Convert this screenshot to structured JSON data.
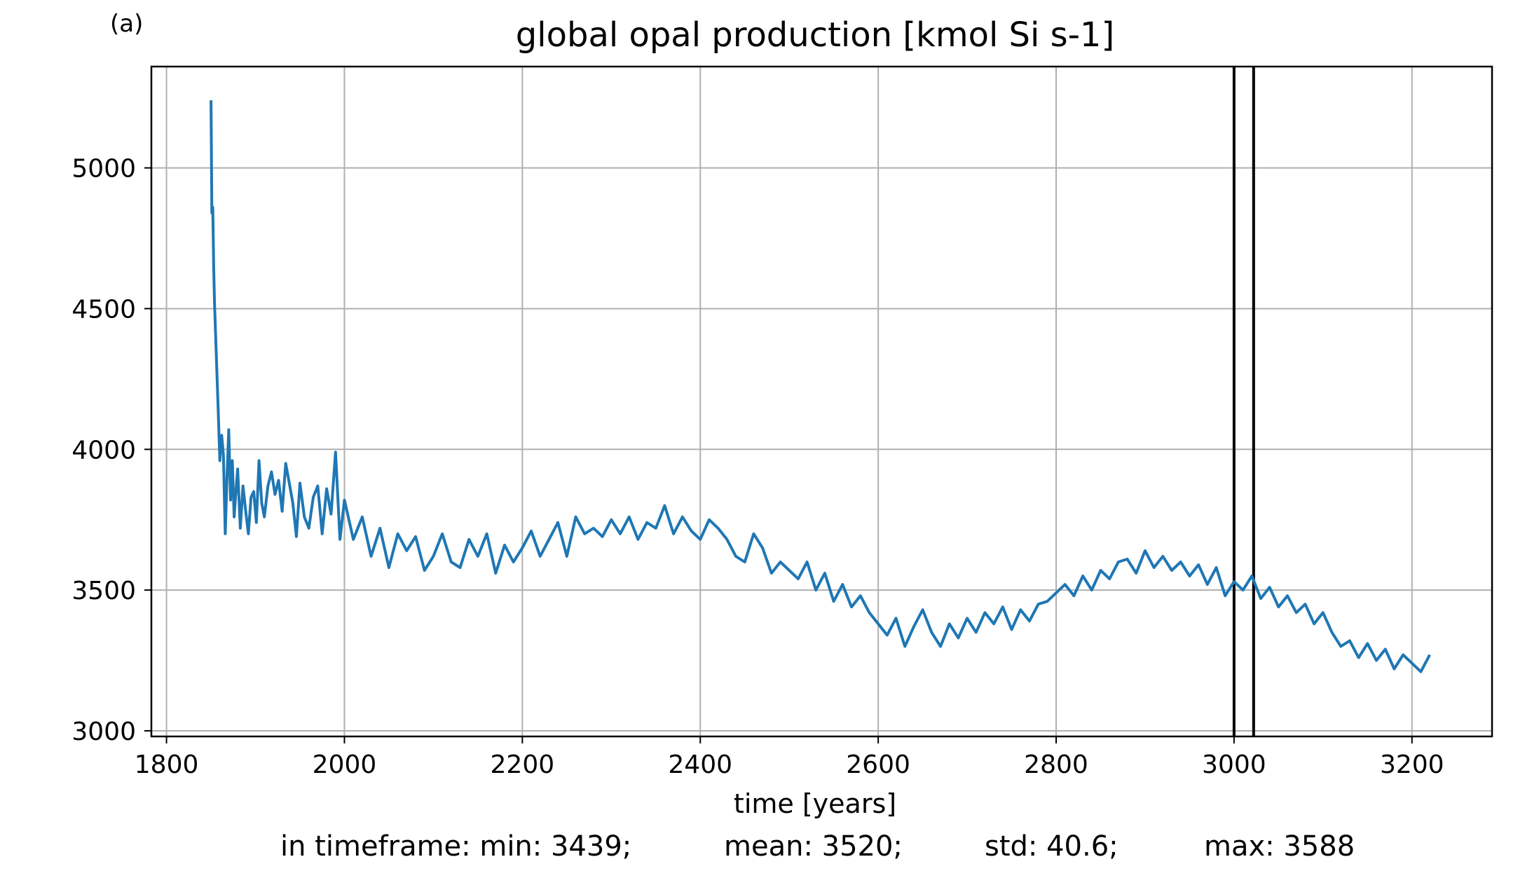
{
  "panel_label": "(a)",
  "stats": {
    "min": "in timeframe: min: 3439;",
    "mean": "mean: 3520;",
    "std": "std: 40.6;",
    "max": "max: 3588"
  },
  "colors": {
    "series": "#1f77b4",
    "grid": "#b0b0b0",
    "vline": "#000000"
  },
  "chart_data": {
    "type": "line",
    "title": "global opal production [kmol Si s-1]",
    "xlabel": "time [years]",
    "ylabel": "",
    "xlim": [
      1783,
      3290
    ],
    "ylim": [
      2980,
      5360
    ],
    "xticks": [
      1800,
      2000,
      2200,
      2400,
      2600,
      2800,
      3000,
      3200
    ],
    "yticks": [
      3000,
      3500,
      4000,
      4500,
      5000
    ],
    "grid": true,
    "vlines": [
      3000,
      3022
    ],
    "series": [
      {
        "x": [
          1850,
          1851,
          1852,
          1853,
          1854,
          1856,
          1858,
          1860,
          1862,
          1864,
          1866,
          1868,
          1870,
          1872,
          1874,
          1876,
          1878,
          1880,
          1883,
          1886,
          1889,
          1892,
          1895,
          1898,
          1901,
          1904,
          1907,
          1910,
          1914,
          1918,
          1922,
          1926,
          1930,
          1934,
          1938,
          1942,
          1946,
          1950,
          1955,
          1960,
          1965,
          1970,
          1975,
          1980,
          1985,
          1990,
          1995,
          2000,
          2010,
          2020,
          2030,
          2040,
          2050,
          2060,
          2070,
          2080,
          2090,
          2100,
          2110,
          2120,
          2130,
          2140,
          2150,
          2160,
          2170,
          2180,
          2190,
          2200,
          2210,
          2220,
          2230,
          2240,
          2250,
          2260,
          2270,
          2280,
          2290,
          2300,
          2310,
          2320,
          2330,
          2340,
          2350,
          2360,
          2370,
          2380,
          2390,
          2400,
          2410,
          2420,
          2430,
          2440,
          2450,
          2460,
          2470,
          2480,
          2490,
          2500,
          2510,
          2520,
          2530,
          2540,
          2550,
          2560,
          2570,
          2580,
          2590,
          2600,
          2610,
          2620,
          2630,
          2640,
          2650,
          2660,
          2670,
          2680,
          2690,
          2700,
          2710,
          2720,
          2730,
          2740,
          2750,
          2760,
          2770,
          2780,
          2790,
          2800,
          2810,
          2820,
          2830,
          2840,
          2850,
          2860,
          2870,
          2880,
          2890,
          2900,
          2910,
          2920,
          2930,
          2940,
          2950,
          2960,
          2970,
          2980,
          2990,
          3000,
          3010,
          3020,
          3030,
          3040,
          3050,
          3060,
          3070,
          3080,
          3090,
          3100,
          3110,
          3120,
          3130,
          3140,
          3150,
          3160,
          3170,
          3180,
          3190,
          3200,
          3210,
          3220
        ],
        "values": [
          5240,
          4840,
          4860,
          4650,
          4520,
          4330,
          4150,
          3960,
          4050,
          3980,
          3700,
          3900,
          4070,
          3820,
          3960,
          3760,
          3850,
          3930,
          3720,
          3870,
          3780,
          3700,
          3830,
          3850,
          3740,
          3960,
          3810,
          3760,
          3870,
          3920,
          3840,
          3890,
          3780,
          3950,
          3880,
          3810,
          3690,
          3880,
          3760,
          3720,
          3830,
          3870,
          3700,
          3860,
          3770,
          3990,
          3680,
          3820,
          3680,
          3760,
          3620,
          3720,
          3580,
          3700,
          3640,
          3690,
          3570,
          3620,
          3700,
          3600,
          3580,
          3680,
          3620,
          3700,
          3560,
          3660,
          3600,
          3650,
          3710,
          3620,
          3680,
          3740,
          3620,
          3760,
          3700,
          3720,
          3690,
          3750,
          3700,
          3760,
          3680,
          3740,
          3720,
          3800,
          3700,
          3760,
          3710,
          3680,
          3750,
          3720,
          3680,
          3620,
          3600,
          3700,
          3650,
          3560,
          3600,
          3570,
          3540,
          3600,
          3500,
          3560,
          3460,
          3520,
          3440,
          3480,
          3420,
          3380,
          3340,
          3400,
          3300,
          3370,
          3430,
          3350,
          3300,
          3380,
          3330,
          3400,
          3350,
          3420,
          3380,
          3440,
          3360,
          3430,
          3390,
          3450,
          3460,
          3490,
          3520,
          3480,
          3550,
          3500,
          3570,
          3540,
          3600,
          3610,
          3560,
          3640,
          3580,
          3620,
          3570,
          3600,
          3550,
          3590,
          3520,
          3580,
          3480,
          3530,
          3500,
          3550,
          3470,
          3510,
          3440,
          3480,
          3420,
          3450,
          3380,
          3420,
          3350,
          3300,
          3320,
          3260,
          3310,
          3250,
          3290,
          3220,
          3270,
          3240,
          3210,
          3270
        ]
      }
    ]
  }
}
